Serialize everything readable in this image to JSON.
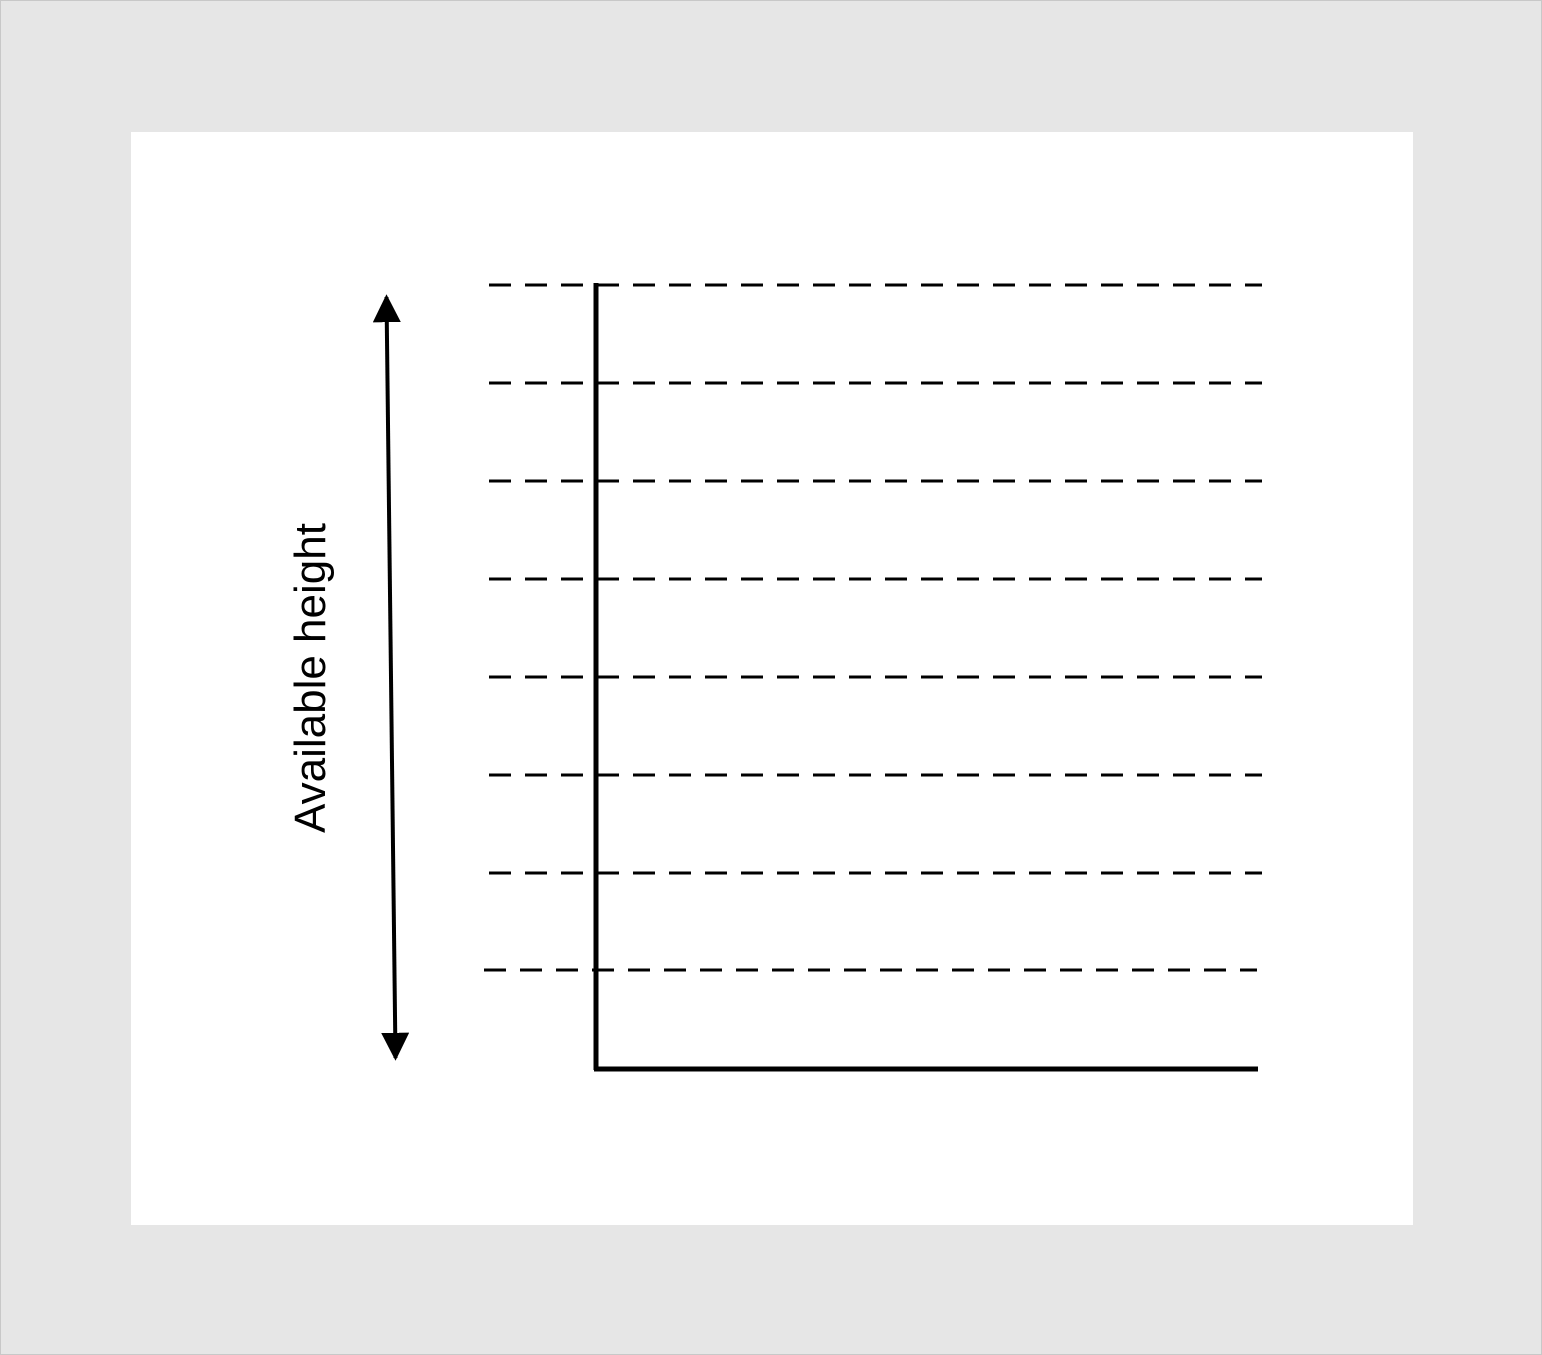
{
  "diagram": {
    "arrow_label": "Available height",
    "guide_line_count": 8,
    "colors": {
      "background": "#e6e6e6",
      "canvas": "#ffffff",
      "ink": "#000000"
    }
  }
}
